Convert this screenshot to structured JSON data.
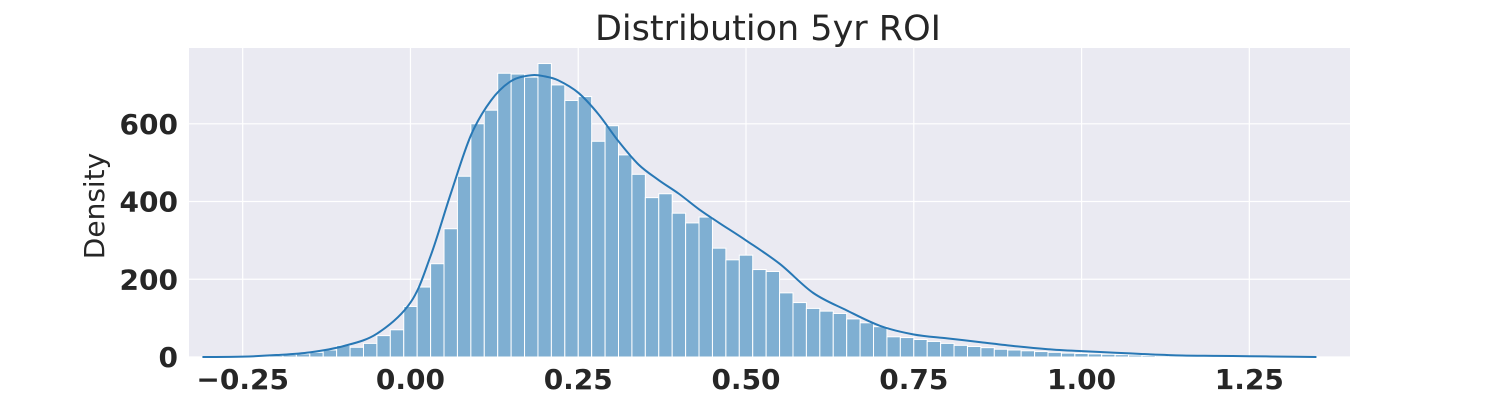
{
  "chart_data": {
    "type": "histogram",
    "title": "Distribution 5yr ROI",
    "xlabel": "",
    "ylabel": "Density",
    "xlim": [
      -0.33,
      1.4
    ],
    "ylim": [
      0,
      795
    ],
    "xticks": [
      -0.25,
      0.0,
      0.25,
      0.5,
      0.75,
      1.0,
      1.25
    ],
    "xtick_labels": [
      "−0.25",
      "0.00",
      "0.25",
      "0.50",
      "0.75",
      "1.00",
      "1.25"
    ],
    "yticks": [
      0,
      200,
      400,
      600
    ],
    "ytick_labels": [
      "0",
      "200",
      "400",
      "600"
    ],
    "grid": true,
    "bar_color": "#7fafd2",
    "bar_edge_color": "#ffffff",
    "kde_color": "#2878b5",
    "background_color": "#eaeaf2",
    "bin_width": 0.02,
    "bins": [
      {
        "x0": -0.31,
        "count": 1
      },
      {
        "x0": -0.29,
        "count": 1
      },
      {
        "x0": -0.27,
        "count": 1
      },
      {
        "x0": -0.25,
        "count": 2
      },
      {
        "x0": -0.23,
        "count": 3
      },
      {
        "x0": -0.21,
        "count": 4
      },
      {
        "x0": -0.19,
        "count": 6
      },
      {
        "x0": -0.17,
        "count": 8
      },
      {
        "x0": -0.15,
        "count": 12
      },
      {
        "x0": -0.13,
        "count": 18
      },
      {
        "x0": -0.11,
        "count": 30
      },
      {
        "x0": -0.09,
        "count": 25
      },
      {
        "x0": -0.07,
        "count": 35
      },
      {
        "x0": -0.05,
        "count": 55
      },
      {
        "x0": -0.03,
        "count": 70
      },
      {
        "x0": -0.01,
        "count": 130
      },
      {
        "x0": 0.01,
        "count": 180
      },
      {
        "x0": 0.03,
        "count": 240
      },
      {
        "x0": 0.05,
        "count": 330
      },
      {
        "x0": 0.07,
        "count": 465
      },
      {
        "x0": 0.09,
        "count": 600
      },
      {
        "x0": 0.11,
        "count": 635
      },
      {
        "x0": 0.13,
        "count": 730
      },
      {
        "x0": 0.15,
        "count": 728
      },
      {
        "x0": 0.17,
        "count": 720
      },
      {
        "x0": 0.19,
        "count": 755
      },
      {
        "x0": 0.21,
        "count": 700
      },
      {
        "x0": 0.23,
        "count": 660
      },
      {
        "x0": 0.25,
        "count": 670
      },
      {
        "x0": 0.27,
        "count": 555
      },
      {
        "x0": 0.29,
        "count": 595
      },
      {
        "x0": 0.31,
        "count": 520
      },
      {
        "x0": 0.33,
        "count": 470
      },
      {
        "x0": 0.35,
        "count": 410
      },
      {
        "x0": 0.37,
        "count": 420
      },
      {
        "x0": 0.39,
        "count": 370
      },
      {
        "x0": 0.41,
        "count": 345
      },
      {
        "x0": 0.43,
        "count": 360
      },
      {
        "x0": 0.45,
        "count": 280
      },
      {
        "x0": 0.47,
        "count": 250
      },
      {
        "x0": 0.49,
        "count": 262
      },
      {
        "x0": 0.51,
        "count": 225
      },
      {
        "x0": 0.53,
        "count": 220
      },
      {
        "x0": 0.55,
        "count": 165
      },
      {
        "x0": 0.57,
        "count": 140
      },
      {
        "x0": 0.59,
        "count": 125
      },
      {
        "x0": 0.61,
        "count": 118
      },
      {
        "x0": 0.63,
        "count": 112
      },
      {
        "x0": 0.65,
        "count": 98
      },
      {
        "x0": 0.67,
        "count": 88
      },
      {
        "x0": 0.69,
        "count": 78
      },
      {
        "x0": 0.71,
        "count": 52
      },
      {
        "x0": 0.73,
        "count": 50
      },
      {
        "x0": 0.75,
        "count": 45
      },
      {
        "x0": 0.77,
        "count": 40
      },
      {
        "x0": 0.79,
        "count": 35
      },
      {
        "x0": 0.81,
        "count": 30
      },
      {
        "x0": 0.83,
        "count": 27
      },
      {
        "x0": 0.85,
        "count": 24
      },
      {
        "x0": 0.87,
        "count": 20
      },
      {
        "x0": 0.89,
        "count": 18
      },
      {
        "x0": 0.91,
        "count": 16
      },
      {
        "x0": 0.93,
        "count": 14
      },
      {
        "x0": 0.95,
        "count": 12
      },
      {
        "x0": 0.97,
        "count": 10
      },
      {
        "x0": 0.99,
        "count": 9
      },
      {
        "x0": 1.01,
        "count": 8
      },
      {
        "x0": 1.03,
        "count": 7
      },
      {
        "x0": 1.05,
        "count": 6
      },
      {
        "x0": 1.07,
        "count": 5
      },
      {
        "x0": 1.09,
        "count": 4
      },
      {
        "x0": 1.11,
        "count": 3
      },
      {
        "x0": 1.13,
        "count": 3
      },
      {
        "x0": 1.15,
        "count": 2
      },
      {
        "x0": 1.17,
        "count": 2
      },
      {
        "x0": 1.19,
        "count": 2
      },
      {
        "x0": 1.21,
        "count": 1
      },
      {
        "x0": 1.23,
        "count": 1
      },
      {
        "x0": 1.25,
        "count": 1
      },
      {
        "x0": 1.27,
        "count": 1
      },
      {
        "x0": 1.29,
        "count": 1
      },
      {
        "x0": 1.31,
        "count": 1
      },
      {
        "x0": 1.33,
        "count": 1
      }
    ],
    "kde": {
      "x": [
        -0.31,
        -0.25,
        -0.2,
        -0.15,
        -0.1,
        -0.05,
        0.0,
        0.03,
        0.06,
        0.09,
        0.12,
        0.15,
        0.18,
        0.2,
        0.22,
        0.25,
        0.28,
        0.31,
        0.34,
        0.37,
        0.4,
        0.43,
        0.46,
        0.5,
        0.55,
        0.6,
        0.65,
        0.7,
        0.75,
        0.8,
        0.85,
        0.9,
        0.95,
        1.0,
        1.05,
        1.1,
        1.15,
        1.2,
        1.25,
        1.3,
        1.35
      ],
      "y": [
        0,
        1,
        5,
        12,
        28,
        60,
        140,
        260,
        420,
        570,
        660,
        710,
        725,
        722,
        712,
        680,
        625,
        555,
        495,
        455,
        420,
        380,
        345,
        300,
        240,
        165,
        120,
        80,
        58,
        48,
        38,
        28,
        20,
        15,
        11,
        7,
        4,
        3,
        2,
        1,
        0
      ]
    }
  }
}
